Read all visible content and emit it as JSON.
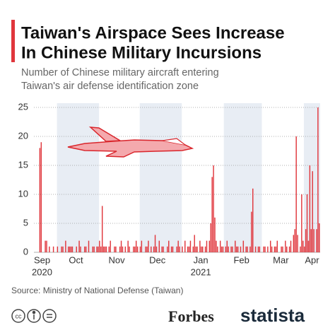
{
  "chart_data": {
    "type": "bar",
    "title": [
      "Taiwan's Airspace Sees Increase",
      "In Chinese Military Incursions"
    ],
    "subtitle": [
      "Number of Chinese military aircraft entering",
      "Taiwan's air defense identification zone"
    ],
    "values": [
      0,
      0,
      0,
      0,
      18,
      19,
      0,
      0,
      2,
      2,
      0,
      1,
      0,
      0,
      1,
      0,
      0,
      1,
      0,
      0,
      1,
      1,
      0,
      2,
      0,
      1,
      1,
      1,
      1,
      0,
      0,
      1,
      0,
      2,
      1,
      0,
      0,
      1,
      1,
      0,
      2,
      0,
      0,
      1,
      1,
      0,
      1,
      1,
      2,
      1,
      8,
      1,
      1,
      1,
      0,
      1,
      2,
      0,
      0,
      1,
      1,
      0,
      0,
      1,
      2,
      1,
      0,
      1,
      0,
      2,
      1,
      0,
      0,
      1,
      1,
      2,
      1,
      0,
      1,
      2,
      0,
      0,
      1,
      1,
      2,
      0,
      1,
      0,
      1,
      3,
      1,
      0,
      2,
      0,
      1,
      1,
      0,
      0,
      1,
      2,
      0,
      1,
      1,
      0,
      0,
      1,
      2,
      1,
      0,
      1,
      0,
      2,
      0,
      1,
      1,
      2,
      0,
      1,
      3,
      1,
      1,
      0,
      2,
      1,
      1,
      0,
      1,
      2,
      0,
      2,
      5,
      13,
      15,
      6,
      2,
      1,
      0,
      2,
      1,
      1,
      0,
      1,
      2,
      1,
      0,
      1,
      1,
      0,
      2,
      1,
      1,
      0,
      1,
      0,
      2,
      0,
      1,
      1,
      0,
      1,
      7,
      11,
      0,
      1,
      0,
      1,
      1,
      0,
      0,
      1,
      1,
      0,
      1,
      0,
      2,
      1,
      0,
      1,
      1,
      2,
      0,
      0,
      1,
      1,
      0,
      2,
      1,
      0,
      1,
      2,
      0,
      3,
      4,
      20,
      3,
      0,
      1,
      10,
      2,
      1,
      4,
      10,
      2,
      15,
      4,
      14,
      4,
      0,
      4,
      25,
      5
    ],
    "color": "#e0363c",
    "xlim": [
      0,
      211
    ],
    "xticks": [
      {
        "value": 6,
        "label": "Sep"
      },
      {
        "value": 31,
        "label": "Oct"
      },
      {
        "value": 61,
        "label": "Nov"
      },
      {
        "value": 91,
        "label": "Dec"
      },
      {
        "value": 123,
        "label": "Jan"
      },
      {
        "value": 153,
        "label": "Feb"
      },
      {
        "value": 182,
        "label": "Mar"
      },
      {
        "value": 205,
        "label": "Apr"
      }
    ],
    "year_labels": [
      {
        "value": 6,
        "label": "2020"
      },
      {
        "value": 123,
        "label": "2021"
      }
    ],
    "ylim": [
      0,
      25
    ],
    "yticks": [
      0,
      5,
      10,
      15,
      20,
      25
    ],
    "grid": true,
    "source": "Source: Ministry of National Defense (Taiwan)",
    "footer": [
      "Forbes",
      "statista"
    ]
  }
}
